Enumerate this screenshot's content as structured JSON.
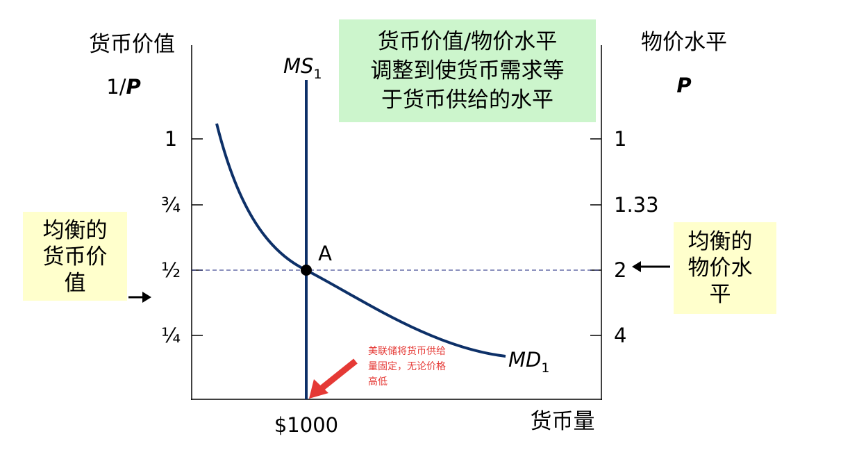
{
  "left_axis": {
    "title": "货币价值",
    "unit_prefix": "1/",
    "unit": "P",
    "ticks": [
      "1",
      "¾",
      "½",
      "¼"
    ]
  },
  "right_axis": {
    "title": "物价水平",
    "unit": "P",
    "ticks": [
      "1",
      "1.33",
      "2",
      "4"
    ]
  },
  "x_axis": {
    "title": "货币量",
    "marker": "$1000"
  },
  "supply_curve": {
    "name": "MS",
    "subscript": "1"
  },
  "demand_curve": {
    "name": "MD",
    "subscript": "1"
  },
  "equilibrium": {
    "label": "A"
  },
  "note": {
    "lines": [
      "货币价值/物价水平",
      "调整到使货币需求等",
      "于货币供给的水平"
    ]
  },
  "left_box": {
    "lines": [
      "均衡的",
      "货币价",
      "值"
    ]
  },
  "right_box": {
    "lines": [
      "均衡的",
      "物价水",
      "平"
    ]
  },
  "red_note": {
    "lines": [
      "美联储将货币供给",
      "量固定，无论价格",
      "高低"
    ]
  }
}
